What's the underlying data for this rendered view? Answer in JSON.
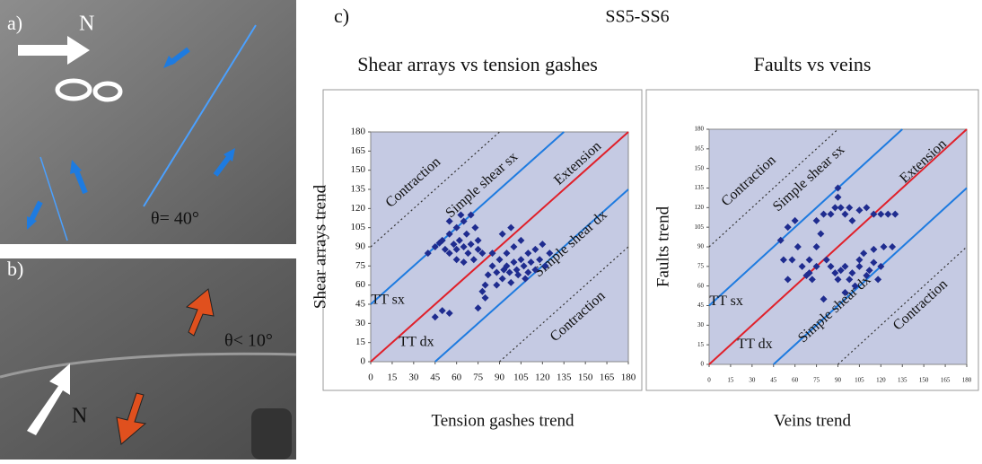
{
  "figure": {
    "label": "c)",
    "title": "SS5-SS6"
  },
  "photos": [
    {
      "label": "a)",
      "north": "N",
      "angle": "θ= 40°"
    },
    {
      "label": "b)",
      "north": "N",
      "angle": "θ< 10°"
    }
  ],
  "chart_data": [
    {
      "type": "scatter",
      "title": "Shear arrays vs tension gashes",
      "x_label": "Tension gashes trend",
      "y_label": "Shear arrays trend",
      "xlim": [
        0,
        180
      ],
      "ylim": [
        0,
        180
      ],
      "xticks": [
        0,
        15,
        30,
        45,
        60,
        75,
        90,
        105,
        120,
        135,
        150,
        165,
        180
      ],
      "yticks": [
        0,
        15,
        30,
        45,
        60,
        75,
        90,
        105,
        120,
        135,
        150,
        165,
        180
      ],
      "color": "#1f2c8f",
      "x": [
        40,
        45,
        48,
        50,
        52,
        55,
        55,
        58,
        60,
        60,
        62,
        63,
        65,
        65,
        67,
        68,
        70,
        70,
        72,
        73,
        75,
        75,
        78,
        55,
        60,
        65,
        45,
        50,
        55,
        75,
        78,
        80,
        80,
        82,
        85,
        88,
        88,
        90,
        92,
        93,
        95,
        95,
        97,
        98,
        100,
        100,
        102,
        103,
        105,
        105,
        107,
        108,
        110,
        110,
        112,
        115,
        115,
        118,
        120,
        122,
        125,
        92,
        85,
        98
      ],
      "y": [
        85,
        90,
        93,
        95,
        88,
        100,
        85,
        92,
        105,
        88,
        95,
        115,
        110,
        90,
        100,
        85,
        115,
        92,
        80,
        105,
        95,
        88,
        85,
        110,
        80,
        78,
        35,
        40,
        38,
        42,
        55,
        60,
        50,
        68,
        75,
        70,
        60,
        80,
        65,
        72,
        75,
        85,
        70,
        62,
        78,
        90,
        72,
        68,
        80,
        95,
        75,
        65,
        85,
        70,
        78,
        88,
        72,
        80,
        92,
        75,
        85,
        100,
        85,
        105
      ],
      "reference_lines": [
        {
          "offset": 90,
          "color": "#333333",
          "dashed": true
        },
        {
          "offset": 45,
          "color": "#1e7be0",
          "dashed": false
        },
        {
          "offset": 0,
          "color": "#e0202a",
          "dashed": false
        },
        {
          "offset": -45,
          "color": "#1e7be0",
          "dashed": false
        },
        {
          "offset": -90,
          "color": "#333333",
          "dashed": true
        }
      ],
      "annotations": [
        "Contraction",
        "Simple shear sx",
        "Extension",
        "Simple shear dx",
        "Contraction",
        "TT sx",
        "TT dx"
      ]
    },
    {
      "type": "scatter",
      "title": "Faults vs veins",
      "x_label": "Veins trend",
      "y_label": "Faults trend",
      "xlim": [
        0,
        180
      ],
      "ylim": [
        0,
        180
      ],
      "xticks": [
        0,
        15,
        30,
        45,
        60,
        75,
        90,
        105,
        120,
        135,
        150,
        165,
        180
      ],
      "yticks": [
        0,
        15,
        30,
        45,
        60,
        75,
        90,
        105,
        120,
        135,
        150,
        165,
        180
      ],
      "color": "#1f2c8f",
      "x": [
        50,
        52,
        55,
        55,
        58,
        60,
        62,
        65,
        68,
        70,
        72,
        75,
        75,
        78,
        80,
        82,
        85,
        88,
        90,
        90,
        92,
        95,
        98,
        100,
        105,
        110,
        115,
        120,
        125,
        130,
        85,
        88,
        90,
        92,
        95,
        95,
        98,
        100,
        102,
        105,
        105,
        108,
        110,
        112,
        115,
        115,
        118,
        120,
        122,
        128,
        80,
        75,
        70
      ],
      "y": [
        95,
        80,
        65,
        105,
        80,
        110,
        90,
        75,
        68,
        80,
        65,
        90,
        110,
        100,
        115,
        80,
        115,
        120,
        135,
        128,
        120,
        115,
        120,
        110,
        118,
        120,
        115,
        115,
        115,
        115,
        75,
        70,
        65,
        72,
        75,
        55,
        65,
        70,
        60,
        75,
        80,
        85,
        68,
        72,
        78,
        88,
        65,
        75,
        90,
        90,
        50,
        75,
        70
      ],
      "reference_lines": [
        {
          "offset": 90,
          "color": "#333333",
          "dashed": true
        },
        {
          "offset": 45,
          "color": "#1e7be0",
          "dashed": false
        },
        {
          "offset": 0,
          "color": "#e0202a",
          "dashed": false
        },
        {
          "offset": -45,
          "color": "#1e7be0",
          "dashed": false
        },
        {
          "offset": -90,
          "color": "#333333",
          "dashed": true
        }
      ],
      "annotations": [
        "Contraction",
        "Simple shear sx",
        "Extension",
        "Simple shear dx",
        "Contraction",
        "TT sx",
        "TT dx"
      ]
    }
  ]
}
